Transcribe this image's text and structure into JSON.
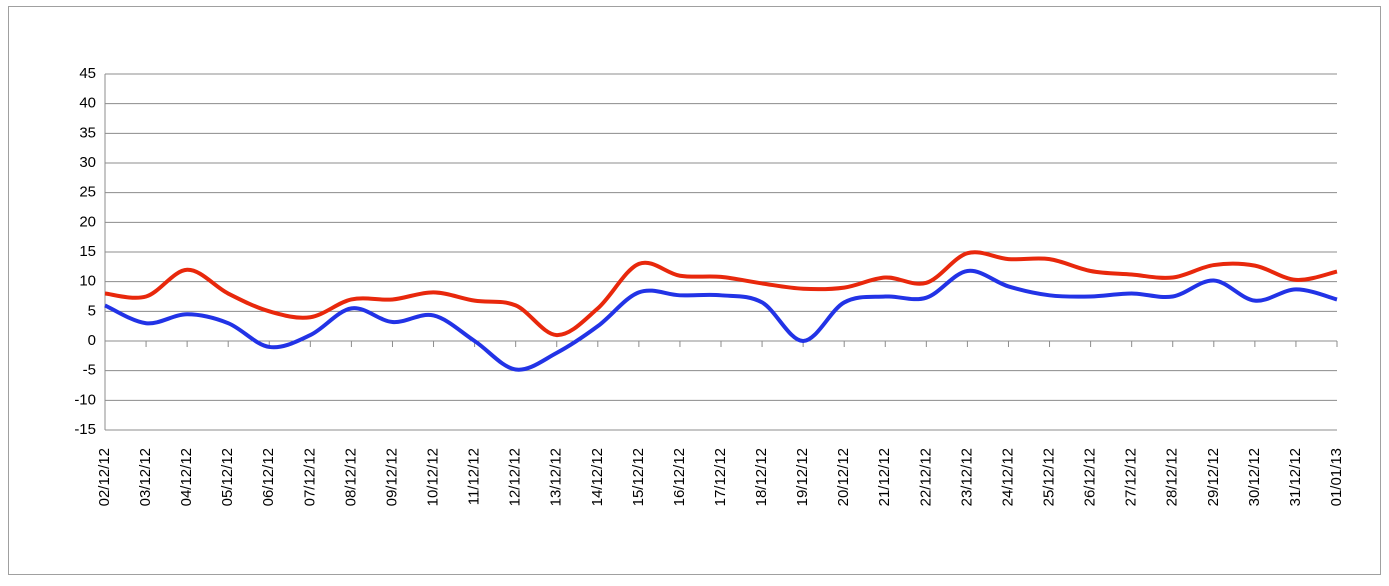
{
  "chart_data": {
    "type": "line",
    "categories": [
      "02/12/12",
      "03/12/12",
      "04/12/12",
      "05/12/12",
      "06/12/12",
      "07/12/12",
      "08/12/12",
      "09/12/12",
      "10/12/12",
      "11/12/12",
      "12/12/12",
      "13/12/12",
      "14/12/12",
      "15/12/12",
      "16/12/12",
      "17/12/12",
      "18/12/12",
      "19/12/12",
      "20/12/12",
      "21/12/12",
      "22/12/12",
      "23/12/12",
      "24/12/12",
      "25/12/12",
      "26/12/12",
      "27/12/12",
      "28/12/12",
      "29/12/12",
      "30/12/12",
      "31/12/12",
      "01/01/13"
    ],
    "series": [
      {
        "color": "#e8280c",
        "values": [
          8,
          7.5,
          12,
          8,
          5,
          4,
          7,
          7,
          8.2,
          6.8,
          6,
          1,
          5.5,
          13,
          11,
          10.8,
          9.7,
          8.8,
          9,
          10.7,
          9.8,
          14.8,
          13.8,
          13.8,
          11.8,
          11.2,
          10.7,
          12.8,
          12.7,
          10.3,
          11.7
        ]
      },
      {
        "color": "#2233e6",
        "values": [
          6,
          3,
          4.5,
          3,
          -1,
          1,
          5.5,
          3.2,
          4.3,
          0,
          -4.8,
          -2,
          2.5,
          8.2,
          7.7,
          7.7,
          6.5,
          0,
          6.5,
          7.5,
          7.3,
          11.8,
          9.2,
          7.7,
          7.5,
          8,
          7.5,
          10.2,
          6.8,
          8.7,
          7
        ]
      }
    ],
    "ylim": [
      -15,
      45
    ],
    "yticks": [
      -15,
      -10,
      -5,
      0,
      5,
      10,
      15,
      20,
      25,
      30,
      35,
      40,
      45
    ],
    "grid": true
  }
}
